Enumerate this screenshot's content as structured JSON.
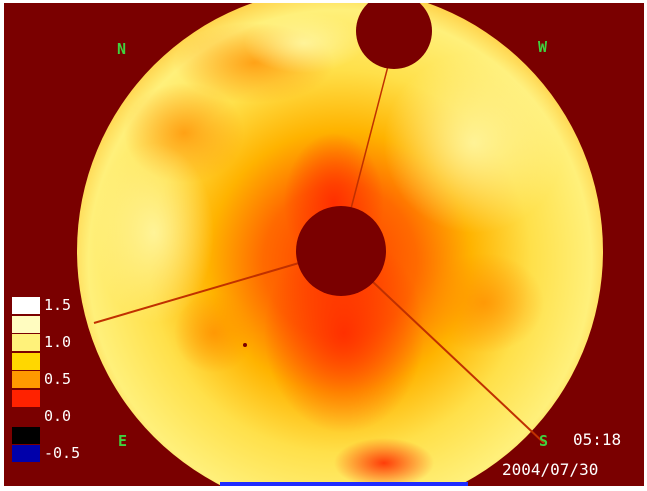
{
  "directions": {
    "north": "N",
    "west": "W",
    "east": "E",
    "south": "S"
  },
  "scale": {
    "entries": [
      {
        "label": "1.5",
        "color": "#ffffff"
      },
      {
        "label": "",
        "color": "#fffcc0"
      },
      {
        "label": "1.0",
        "color": "#fff27a"
      },
      {
        "label": "",
        "color": "#ffd700"
      },
      {
        "label": "0.5",
        "color": "#ff9900"
      },
      {
        "label": "",
        "color": "#ff2200"
      },
      {
        "label": "0.0",
        "color": "#7a0000"
      },
      {
        "label": "",
        "color": "#000000"
      },
      {
        "label": "-0.5",
        "color": "#0000aa"
      }
    ]
  },
  "timestamp": {
    "time": "05:18",
    "date": "2004/07/30"
  },
  "colors": {
    "background": "#7a0000",
    "label_green": "#3fd23f",
    "bar_blue": "#1f2cff"
  }
}
